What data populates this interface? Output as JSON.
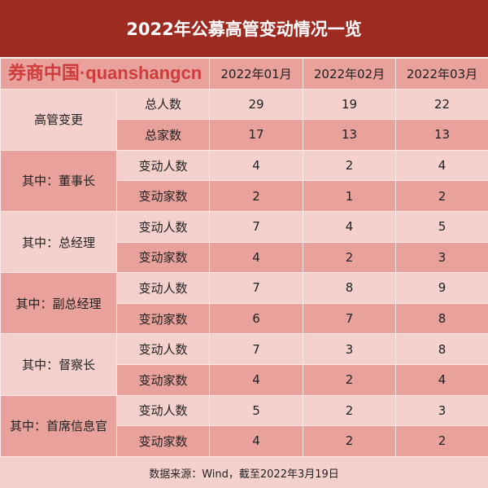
{
  "title": "2022年公募高管变动情况一览",
  "columns": [
    "2022年01月",
    "2022年02月",
    "2022年03月"
  ],
  "groups": [
    {
      "label": "高管变更",
      "rows": [
        {
          "metric": "总人数",
          "values": [
            "29",
            "19",
            "22"
          ]
        },
        {
          "metric": "总家数",
          "values": [
            "17",
            "13",
            "13"
          ]
        }
      ]
    },
    {
      "label": "其中：董事长",
      "rows": [
        {
          "metric": "变动人数",
          "values": [
            "4",
            "2",
            "4"
          ]
        },
        {
          "metric": "变动家数",
          "values": [
            "2",
            "1",
            "2"
          ]
        }
      ]
    },
    {
      "label": "其中：总经理",
      "rows": [
        {
          "metric": "变动人数",
          "values": [
            "7",
            "4",
            "5"
          ]
        },
        {
          "metric": "变动家数",
          "values": [
            "4",
            "2",
            "3"
          ]
        }
      ]
    },
    {
      "label": "其中：副总经理",
      "rows": [
        {
          "metric": "变动人数",
          "values": [
            "7",
            "8",
            "9"
          ]
        },
        {
          "metric": "变动家数",
          "values": [
            "6",
            "7",
            "8"
          ]
        }
      ]
    },
    {
      "label": "其中：督察长",
      "rows": [
        {
          "metric": "变动人数",
          "values": [
            "7",
            "3",
            "8"
          ]
        },
        {
          "metric": "变动家数",
          "values": [
            "4",
            "2",
            "4"
          ]
        }
      ]
    },
    {
      "label": "其中：首席信息官",
      "rows": [
        {
          "metric": "变动人数",
          "values": [
            "5",
            "2",
            "3"
          ]
        },
        {
          "metric": "变动家数",
          "values": [
            "4",
            "2",
            "2"
          ]
        }
      ]
    }
  ],
  "footer": "数据来源：Wind，截至2022年3月19日",
  "watermark": "券商中国·quanshangcn",
  "colors": {
    "title_bg": "#9d2b21",
    "dark_cell": "#e8a19b",
    "light_cell": "#f5d1cd"
  }
}
